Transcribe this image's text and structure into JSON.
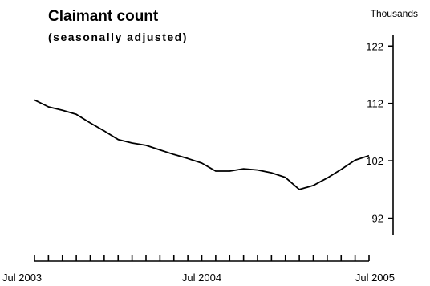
{
  "chart_data": {
    "type": "line",
    "title": "Claimant count",
    "subtitle": "(seasonally adjusted)",
    "unit_label": "Thousands",
    "xlabel": "",
    "ylabel": "",
    "x_tick_labels": [
      "Jul 2003",
      "Jul 2004",
      "Jul 2005"
    ],
    "x_label_index": [
      0,
      12,
      24
    ],
    "y_axis_position": "right",
    "y_ticks": [
      92,
      102,
      112,
      122
    ],
    "ylim": [
      89,
      124
    ],
    "grid": false,
    "legend": "none",
    "series": [
      {
        "x": [
          "2003-07",
          "2003-08",
          "2003-09",
          "2003-10",
          "2003-11",
          "2003-12",
          "2004-01",
          "2004-02",
          "2004-03",
          "2004-04",
          "2004-05",
          "2004-06",
          "2004-07",
          "2004-08",
          "2004-09",
          "2004-10",
          "2004-11",
          "2004-12",
          "2005-01",
          "2005-02",
          "2005-03",
          "2005-04",
          "2005-05",
          "2005-06",
          "2005-07"
        ],
        "values": [
          112.6,
          111.4,
          110.8,
          110.1,
          108.6,
          107.2,
          105.7,
          105.1,
          104.7,
          103.9,
          103.1,
          102.4,
          101.6,
          100.2,
          100.2,
          100.6,
          100.4,
          99.9,
          99.1,
          97.0,
          97.7,
          99.0,
          100.5,
          102.1,
          102.9
        ]
      }
    ]
  }
}
